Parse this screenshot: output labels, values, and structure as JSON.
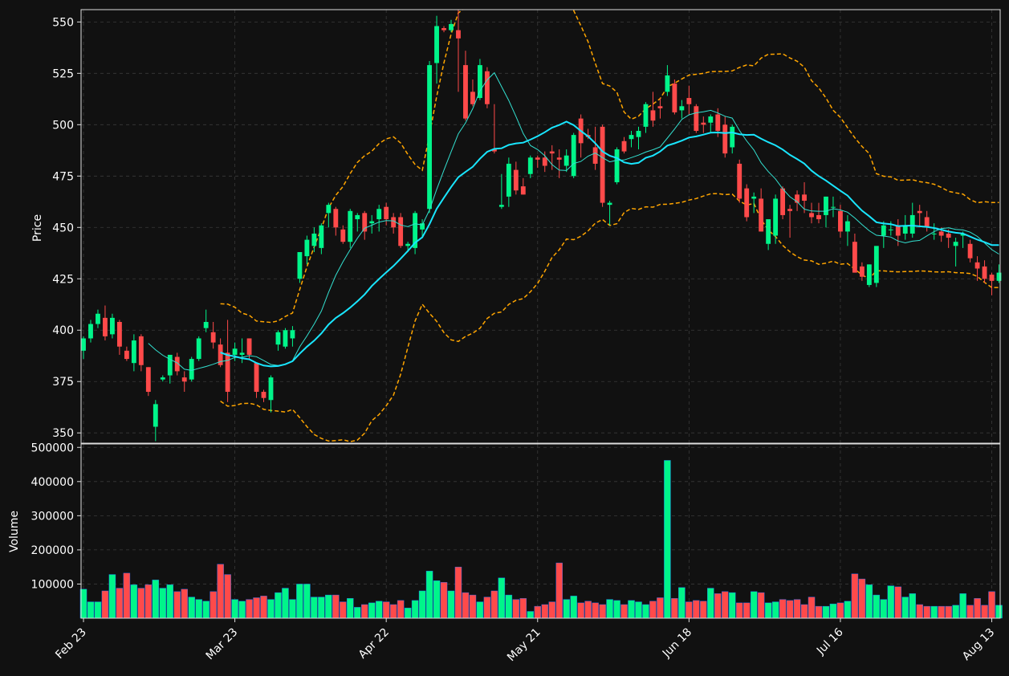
{
  "colors": {
    "background": "#111111",
    "up": "#00f58a",
    "down": "#ff4a4a",
    "grid": "#3a3a3a",
    "axis": "#dddddd",
    "text": "#ffffff",
    "ma_short": "#33e0d0",
    "ma_long": "#19e6ff",
    "bands": "#ffa500"
  },
  "chart_data": {
    "type": "candlestick",
    "x_ticks": [
      "Feb 23",
      "Mar 23",
      "Apr 22",
      "May 21",
      "Jun 18",
      "Jul 16",
      "Aug 13"
    ],
    "x_tick_index": [
      0,
      21,
      42,
      63,
      84,
      105,
      126
    ],
    "price_panel": {
      "ylabel": "Price",
      "ylim": [
        345,
        556
      ],
      "yticks": [
        350,
        375,
        400,
        425,
        450,
        475,
        500,
        525,
        550
      ],
      "grid": true
    },
    "volume_panel": {
      "ylabel": "Volume",
      "ylim": [
        0,
        510000
      ],
      "yticks": [
        100000,
        200000,
        300000,
        400000,
        500000
      ],
      "grid": true
    },
    "ohlc": [
      [
        390,
        397,
        386,
        396
      ],
      [
        396,
        405,
        394,
        403
      ],
      [
        403,
        410,
        401,
        408
      ],
      [
        406,
        412,
        395,
        397
      ],
      [
        398,
        408,
        396,
        406
      ],
      [
        404,
        405,
        388,
        392
      ],
      [
        390,
        392,
        385,
        386
      ],
      [
        384,
        398,
        380,
        395
      ],
      [
        397,
        398,
        380,
        383
      ],
      [
        382,
        382,
        368,
        370
      ],
      [
        353,
        366,
        346,
        364
      ],
      [
        376,
        378,
        375,
        377
      ],
      [
        378,
        388,
        374,
        388
      ],
      [
        387,
        389,
        378,
        380
      ],
      [
        377,
        380,
        370,
        375
      ],
      [
        376,
        387,
        375,
        386
      ],
      [
        386,
        397,
        385,
        396
      ],
      [
        401,
        410,
        399,
        404
      ],
      [
        399,
        404,
        391,
        394
      ],
      [
        393,
        396,
        382,
        383
      ],
      [
        389,
        405,
        365,
        370
      ],
      [
        388,
        394,
        385,
        391
      ],
      [
        388,
        396,
        384,
        389
      ],
      [
        396,
        396,
        386,
        388
      ],
      [
        384,
        384,
        367,
        370
      ],
      [
        370,
        371,
        365,
        367
      ],
      [
        366,
        378,
        360,
        377
      ],
      [
        393,
        400,
        390,
        399
      ],
      [
        392,
        401,
        391,
        400
      ],
      [
        396,
        402,
        392,
        400
      ],
      [
        425,
        438,
        423,
        438
      ],
      [
        436,
        446,
        432,
        444
      ],
      [
        441,
        450,
        438,
        447
      ],
      [
        440,
        452,
        437,
        451
      ],
      [
        457,
        462,
        450,
        461
      ],
      [
        459,
        460,
        446,
        450
      ],
      [
        449,
        451,
        442,
        443
      ],
      [
        443,
        459,
        440,
        458
      ],
      [
        454,
        457,
        448,
        456
      ],
      [
        457,
        458,
        444,
        448
      ],
      [
        452,
        456,
        447,
        453
      ],
      [
        454,
        461,
        448,
        459
      ],
      [
        460,
        462,
        451,
        454
      ],
      [
        455,
        457,
        447,
        450
      ],
      [
        455,
        457,
        440,
        441
      ],
      [
        441,
        443,
        438,
        442
      ],
      [
        440,
        458,
        437,
        457
      ],
      [
        449,
        454,
        445,
        452
      ],
      [
        459,
        531,
        457,
        529
      ],
      [
        530,
        553,
        520,
        548
      ],
      [
        547,
        548,
        545,
        546
      ],
      [
        546,
        551,
        545,
        549
      ],
      [
        546,
        556,
        516,
        542
      ],
      [
        529,
        536,
        502,
        503
      ],
      [
        516,
        522,
        509,
        510
      ],
      [
        513,
        532,
        512,
        529
      ],
      [
        526,
        528,
        508,
        510
      ],
      [
        488,
        510,
        486,
        487
      ],
      [
        460,
        476,
        459,
        461
      ],
      [
        465,
        484,
        460,
        481
      ],
      [
        478,
        482,
        466,
        468
      ],
      [
        470,
        474,
        466,
        466
      ],
      [
        476,
        485,
        474,
        484
      ],
      [
        484,
        485,
        479,
        483
      ],
      [
        484,
        487,
        477,
        480
      ],
      [
        487,
        490,
        478,
        486
      ],
      [
        484,
        488,
        474,
        483
      ],
      [
        480,
        488,
        477,
        485
      ],
      [
        475,
        496,
        474,
        495
      ],
      [
        503,
        505,
        484,
        491
      ],
      [
        495,
        498,
        493,
        494
      ],
      [
        489,
        499,
        478,
        481
      ],
      [
        499,
        500,
        460,
        462
      ],
      [
        461,
        463,
        451,
        462
      ],
      [
        472,
        489,
        471,
        488
      ],
      [
        492,
        494,
        486,
        487
      ],
      [
        493,
        497,
        489,
        495
      ],
      [
        494,
        499,
        488,
        497
      ],
      [
        499,
        511,
        496,
        510
      ],
      [
        507,
        516,
        499,
        502
      ],
      [
        509,
        513,
        503,
        508
      ],
      [
        516,
        529,
        514,
        524
      ],
      [
        520,
        522,
        505,
        506
      ],
      [
        507,
        512,
        503,
        509
      ],
      [
        513,
        519,
        505,
        510
      ],
      [
        509,
        510,
        496,
        497
      ],
      [
        501,
        504,
        496,
        500
      ],
      [
        501,
        505,
        496,
        504
      ],
      [
        505,
        508,
        494,
        497
      ],
      [
        500,
        504,
        484,
        486
      ],
      [
        489,
        500,
        486,
        499
      ],
      [
        481,
        483,
        462,
        464
      ],
      [
        469,
        471,
        453,
        455
      ],
      [
        464,
        467,
        457,
        465
      ],
      [
        464,
        469,
        448,
        448
      ],
      [
        442,
        452,
        439,
        454
      ],
      [
        446,
        466,
        442,
        464
      ],
      [
        469,
        470,
        454,
        456
      ],
      [
        459,
        461,
        445,
        458
      ],
      [
        466,
        468,
        458,
        462
      ],
      [
        466,
        472,
        457,
        463
      ],
      [
        457,
        462,
        452,
        455
      ],
      [
        456,
        462,
        452,
        454
      ],
      [
        456,
        465,
        450,
        465
      ],
      [
        460,
        465,
        455,
        460
      ],
      [
        458,
        461,
        445,
        448
      ],
      [
        448,
        456,
        441,
        453
      ],
      [
        443,
        447,
        428,
        428
      ],
      [
        431,
        433,
        424,
        426
      ],
      [
        422,
        432,
        421,
        432
      ],
      [
        423,
        440,
        421,
        441
      ],
      [
        446,
        453,
        440,
        451
      ],
      [
        449,
        453,
        446,
        449
      ],
      [
        451,
        454,
        441,
        446
      ],
      [
        447,
        456,
        444,
        451
      ],
      [
        447,
        462,
        445,
        456
      ],
      [
        458,
        461,
        450,
        457
      ],
      [
        455,
        458,
        448,
        450
      ],
      [
        447,
        452,
        444,
        447
      ],
      [
        448,
        450,
        443,
        446
      ],
      [
        447,
        449,
        440,
        445
      ],
      [
        441,
        445,
        431,
        443
      ],
      [
        446,
        448,
        440,
        447
      ],
      [
        442,
        444,
        433,
        435
      ],
      [
        433,
        436,
        424,
        430
      ],
      [
        431,
        434,
        423,
        425
      ],
      [
        427,
        428,
        417,
        424
      ],
      [
        424,
        432,
        423,
        428
      ]
    ],
    "volume": [
      85000,
      48000,
      48000,
      80000,
      128000,
      88000,
      132000,
      98000,
      88000,
      98000,
      112000,
      88000,
      98000,
      78000,
      85000,
      62000,
      55000,
      50000,
      78000,
      158000,
      128000,
      55000,
      50000,
      55000,
      60000,
      65000,
      55000,
      75000,
      88000,
      55000,
      100000,
      100000,
      62000,
      62000,
      68000,
      68000,
      48000,
      58000,
      32000,
      40000,
      45000,
      50000,
      48000,
      40000,
      52000,
      30000,
      52000,
      80000,
      138000,
      110000,
      105000,
      80000,
      150000,
      75000,
      68000,
      48000,
      62000,
      80000,
      118000,
      68000,
      55000,
      58000,
      20000,
      35000,
      40000,
      48000,
      162000,
      55000,
      65000,
      45000,
      50000,
      45000,
      40000,
      55000,
      52000,
      40000,
      52000,
      48000,
      40000,
      50000,
      60000,
      462000,
      58000,
      90000,
      48000,
      52000,
      50000,
      88000,
      72000,
      78000,
      75000,
      45000,
      45000,
      78000,
      75000,
      45000,
      48000,
      55000,
      52000,
      55000,
      40000,
      62000,
      35000,
      35000,
      42000,
      45000,
      50000,
      130000,
      115000,
      98000,
      68000,
      55000,
      95000,
      92000,
      62000,
      72000,
      40000,
      35000,
      35000,
      35000,
      35000,
      38000,
      72000,
      38000,
      58000,
      38000,
      78000,
      38000
    ],
    "bands_start_index": 20
  }
}
